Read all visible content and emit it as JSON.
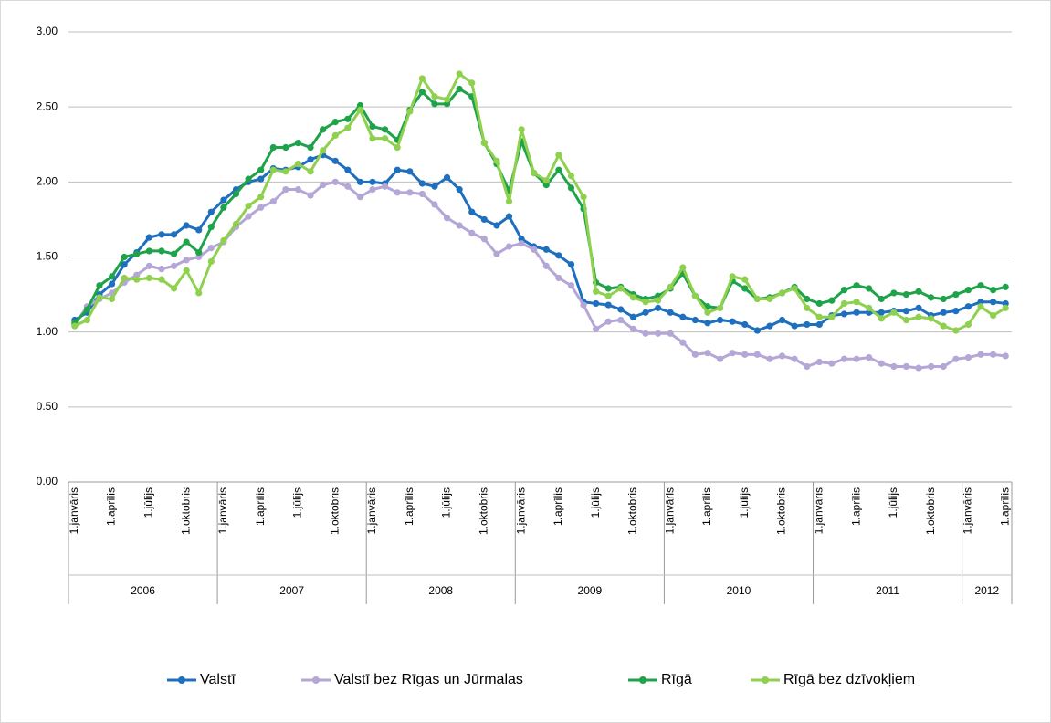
{
  "chart_data": {
    "type": "line",
    "categories": [
      "1.janvāris",
      null,
      null,
      "1.aprīlis",
      null,
      null,
      "1.jūlijs",
      null,
      null,
      "1.oktobris",
      null,
      null,
      "1.janvāris",
      null,
      null,
      "1.aprīlis",
      null,
      null,
      "1.jūlijs",
      null,
      null,
      "1.oktobris",
      null,
      null,
      "1.janvāris",
      null,
      null,
      "1.aprīlis",
      null,
      null,
      "1.jūlijs",
      null,
      null,
      "1.oktobris",
      null,
      null,
      "1.janvāris",
      null,
      null,
      "1.aprīlis",
      null,
      null,
      "1.jūlijs",
      null,
      null,
      "1.oktobris",
      null,
      null,
      "1.janvāris",
      null,
      null,
      "1.aprīlis",
      null,
      null,
      "1.jūlijs",
      null,
      null,
      "1.oktobris",
      null,
      null,
      "1.janvāris",
      null,
      null,
      "1.aprīlis",
      null,
      null,
      "1.jūlijs",
      null,
      null,
      "1.oktobris",
      null,
      null,
      "1.janvāris",
      null,
      null,
      "1.aprīlis"
    ],
    "years": [
      "2006",
      "2007",
      "2008",
      "2009",
      "2010",
      "2011",
      "2012"
    ],
    "ylim": [
      0,
      3
    ],
    "yticks": [
      {
        "value": 0,
        "label": "0.00"
      },
      {
        "value": 0.5,
        "label": "0.50"
      },
      {
        "value": 1,
        "label": "1.00"
      },
      {
        "value": 1.5,
        "label": "1.50"
      },
      {
        "value": 2,
        "label": "2.00"
      },
      {
        "value": 2.5,
        "label": "2.50"
      },
      {
        "value": 3,
        "label": "3.00"
      }
    ],
    "grid": true,
    "legend": "bottom",
    "series": [
      {
        "name": "Valstī",
        "color": "#1f6fbf",
        "values": [
          1.08,
          1.13,
          1.25,
          1.32,
          1.45,
          1.53,
          1.63,
          1.65,
          1.65,
          1.71,
          1.68,
          1.8,
          1.88,
          1.95,
          2.0,
          2.02,
          2.09,
          2.08,
          2.1,
          2.15,
          2.18,
          2.14,
          2.08,
          2.0,
          2.0,
          1.99,
          2.08,
          2.07,
          1.99,
          1.97,
          2.03,
          1.95,
          1.8,
          1.75,
          1.71,
          1.77,
          1.62,
          1.57,
          1.55,
          1.51,
          1.45,
          1.2,
          1.19,
          1.18,
          1.15,
          1.1,
          1.13,
          1.16,
          1.13,
          1.1,
          1.08,
          1.06,
          1.08,
          1.07,
          1.05,
          1.01,
          1.04,
          1.08,
          1.04,
          1.05,
          1.05,
          1.11,
          1.12,
          1.13,
          1.13,
          1.13,
          1.14,
          1.14,
          1.16,
          1.11,
          1.13,
          1.14,
          1.17,
          1.2,
          1.2,
          1.19
        ]
      },
      {
        "name": "Valstī bez Rīgas un Jūrmalas",
        "color": "#b4a7d6",
        "values": [
          1.05,
          1.17,
          1.22,
          1.26,
          1.33,
          1.38,
          1.44,
          1.42,
          1.44,
          1.48,
          1.5,
          1.56,
          1.6,
          1.7,
          1.77,
          1.83,
          1.87,
          1.95,
          1.95,
          1.91,
          1.98,
          2.0,
          1.97,
          1.9,
          1.95,
          1.97,
          1.93,
          1.93,
          1.92,
          1.85,
          1.76,
          1.71,
          1.66,
          1.62,
          1.52,
          1.57,
          1.59,
          1.55,
          1.44,
          1.36,
          1.31,
          1.18,
          1.02,
          1.07,
          1.08,
          1.02,
          0.99,
          0.99,
          0.99,
          0.93,
          0.85,
          0.86,
          0.82,
          0.86,
          0.85,
          0.85,
          0.82,
          0.84,
          0.82,
          0.77,
          0.8,
          0.79,
          0.82,
          0.82,
          0.83,
          0.79,
          0.77,
          0.77,
          0.76,
          0.77,
          0.77,
          0.82,
          0.83,
          0.85,
          0.85,
          0.84
        ]
      },
      {
        "name": "Rīgā",
        "color": "#1ea34a",
        "values": [
          1.06,
          1.15,
          1.31,
          1.37,
          1.5,
          1.52,
          1.54,
          1.54,
          1.52,
          1.6,
          1.53,
          1.7,
          1.83,
          1.92,
          2.02,
          2.08,
          2.23,
          2.23,
          2.26,
          2.23,
          2.35,
          2.4,
          2.42,
          2.51,
          2.37,
          2.35,
          2.28,
          2.48,
          2.6,
          2.52,
          2.52,
          2.62,
          2.57,
          2.26,
          2.12,
          1.94,
          2.27,
          2.06,
          1.98,
          2.08,
          1.96,
          1.82,
          1.33,
          1.29,
          1.3,
          1.25,
          1.22,
          1.24,
          1.29,
          1.39,
          1.24,
          1.17,
          1.16,
          1.34,
          1.29,
          1.22,
          1.23,
          1.26,
          1.3,
          1.22,
          1.19,
          1.21,
          1.28,
          1.31,
          1.29,
          1.22,
          1.26,
          1.25,
          1.27,
          1.23,
          1.22,
          1.25,
          1.28,
          1.31,
          1.28,
          1.3
        ]
      },
      {
        "name": "Rīgā bez dzīvokļiem",
        "color": "#8fd14f",
        "values": [
          1.04,
          1.08,
          1.23,
          1.22,
          1.36,
          1.35,
          1.36,
          1.35,
          1.29,
          1.41,
          1.26,
          1.47,
          1.61,
          1.72,
          1.84,
          1.9,
          2.08,
          2.07,
          2.12,
          2.07,
          2.21,
          2.31,
          2.36,
          2.48,
          2.29,
          2.29,
          2.23,
          2.47,
          2.69,
          2.57,
          2.55,
          2.72,
          2.66,
          2.26,
          2.14,
          1.87,
          2.35,
          2.06,
          2.01,
          2.18,
          2.04,
          1.9,
          1.27,
          1.24,
          1.29,
          1.23,
          1.2,
          1.21,
          1.3,
          1.43,
          1.24,
          1.13,
          1.16,
          1.37,
          1.35,
          1.22,
          1.22,
          1.26,
          1.29,
          1.16,
          1.1,
          1.1,
          1.19,
          1.2,
          1.16,
          1.09,
          1.13,
          1.08,
          1.1,
          1.09,
          1.04,
          1.01,
          1.05,
          1.17,
          1.11,
          1.16
        ]
      }
    ]
  }
}
